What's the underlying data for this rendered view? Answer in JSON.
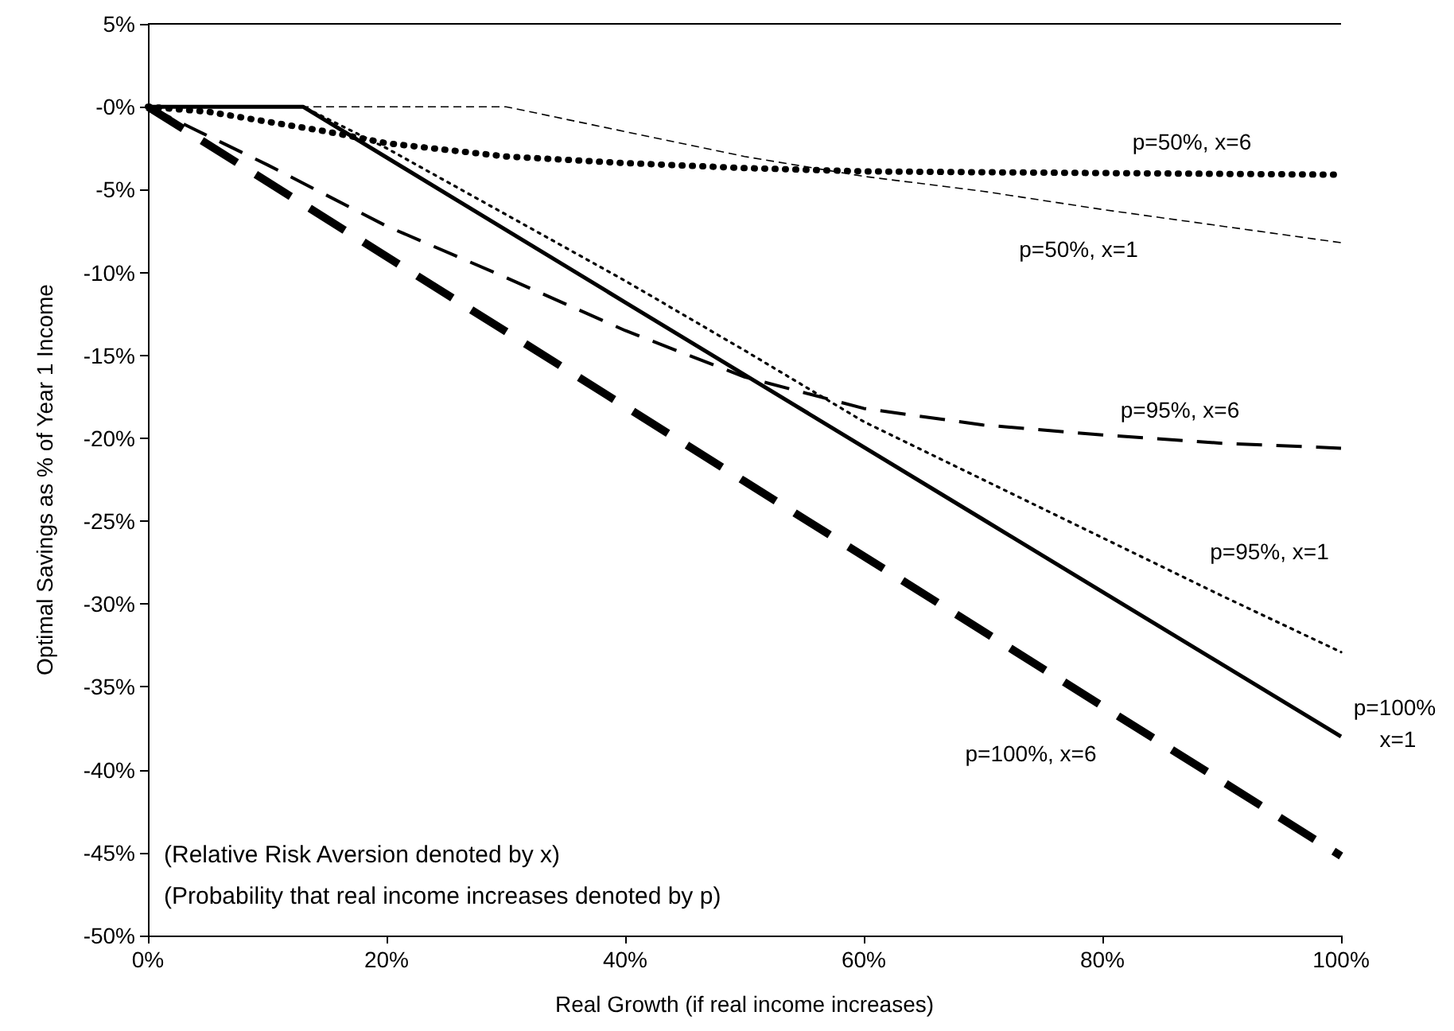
{
  "chart_data": {
    "type": "line",
    "xlabel": "Real Growth (if real income increases)",
    "ylabel": "Optimal Savings as % of Year 1 Income",
    "xlim": [
      0,
      100
    ],
    "ylim": [
      -50,
      5
    ],
    "xticks": [
      {
        "value": 0,
        "label": "0%"
      },
      {
        "value": 20,
        "label": "20%"
      },
      {
        "value": 40,
        "label": "40%"
      },
      {
        "value": 60,
        "label": "60%"
      },
      {
        "value": 80,
        "label": "80%"
      },
      {
        "value": 100,
        "label": "100%"
      }
    ],
    "yticks": [
      {
        "value": 5,
        "label": "5%"
      },
      {
        "value": 0,
        "label": "-0%"
      },
      {
        "value": -5,
        "label": "-5%"
      },
      {
        "value": -10,
        "label": "-10%"
      },
      {
        "value": -15,
        "label": "-15%"
      },
      {
        "value": -20,
        "label": "-20%"
      },
      {
        "value": -25,
        "label": "-25%"
      },
      {
        "value": -30,
        "label": "-30%"
      },
      {
        "value": -35,
        "label": "-35%"
      },
      {
        "value": -40,
        "label": "-40%"
      },
      {
        "value": -45,
        "label": "-45%"
      },
      {
        "value": -50,
        "label": "-50%"
      }
    ],
    "grid": false,
    "legend": false,
    "marker": "none",
    "series": [
      {
        "name": "p=50%, x=6",
        "color": "#000000",
        "line_style": "dotted",
        "x": [
          0,
          5,
          10,
          15,
          20,
          30,
          40,
          50,
          60,
          80,
          100
        ],
        "values": [
          0,
          -0.3,
          -0.9,
          -1.5,
          -2.2,
          -3.0,
          -3.4,
          -3.7,
          -3.9,
          -4.0,
          -4.1
        ]
      },
      {
        "name": "p=50%, x=1",
        "color": "#000000",
        "line_style": "dashed",
        "x": [
          0,
          10,
          20,
          30,
          40,
          50,
          60,
          70,
          80,
          90,
          100
        ],
        "values": [
          0,
          0,
          0,
          0,
          -1.5,
          -3.0,
          -4.2,
          -5.1,
          -6.2,
          -7.2,
          -8.2
        ]
      },
      {
        "name": "p=95%, x=6",
        "color": "#000000",
        "line_style": "dashed",
        "x": [
          0,
          10,
          20,
          30,
          40,
          50,
          60,
          70,
          80,
          90,
          100
        ],
        "values": [
          0,
          -3.5,
          -7.2,
          -10.3,
          -13.5,
          -16.3,
          -18.2,
          -19.2,
          -19.8,
          -20.3,
          -20.6
        ]
      },
      {
        "name": "p=95%, x=1",
        "color": "#000000",
        "line_style": "dotted",
        "x": [
          0,
          13,
          20,
          30,
          40,
          50,
          60,
          70,
          80,
          90,
          100
        ],
        "values": [
          0,
          0,
          -2.5,
          -6.5,
          -10.5,
          -14.7,
          -19.0,
          -22.5,
          -26.0,
          -29.5,
          -32.9
        ]
      },
      {
        "name": "p=100% x=1",
        "color": "#000000",
        "line_style": "solid",
        "x": [
          0,
          13,
          40,
          70,
          100
        ],
        "values": [
          0,
          0,
          -11.8,
          -24.9,
          -38.0
        ]
      },
      {
        "name": "p=100%, x=6",
        "color": "#000000",
        "line_style": "dashed",
        "x": [
          0,
          50,
          100
        ],
        "values": [
          0,
          -22.6,
          -45.2
        ]
      }
    ],
    "annotations": [
      "(Relative Risk Aversion denoted by x)",
      "(Probability that real income increases denoted by p)"
    ]
  }
}
